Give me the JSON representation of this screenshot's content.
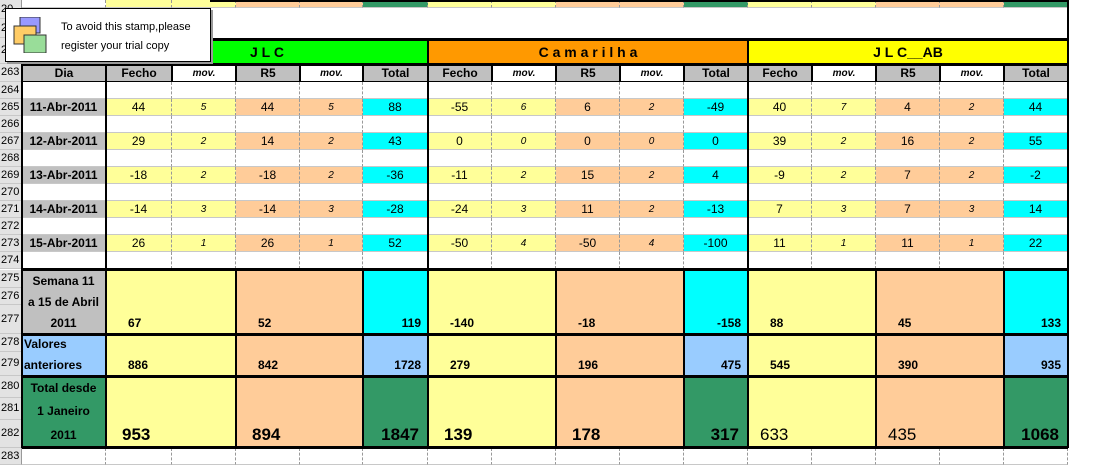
{
  "stamp": {
    "line1": "To avoid this stamp,please",
    "line2": "register your trial copy"
  },
  "row_numbers_top": [
    "20",
    "20",
    "20"
  ],
  "groups": [
    {
      "title": "J  L  C",
      "color": "#00ff00"
    },
    {
      "title": "C a m a r i l h a",
      "color": "#ff9900"
    },
    {
      "title": "J L C__AB",
      "color": "#ffff00"
    }
  ],
  "col_headers": [
    "Dia",
    "Fecho",
    "mov.",
    "R5",
    "mov.",
    "Total",
    "Fecho",
    "mov.",
    "R5",
    "mov.",
    "Total",
    "Fecho",
    "mov.",
    "R5",
    "mov.",
    "Total"
  ],
  "rows": [
    {
      "row": "263"
    },
    {
      "row": "264"
    },
    {
      "row": "265",
      "date": "11-Abr-2011",
      "v": [
        "44",
        "5",
        "44",
        "5",
        "88",
        "-55",
        "6",
        "6",
        "2",
        "-49",
        "40",
        "7",
        "4",
        "2",
        "44"
      ]
    },
    {
      "row": "266"
    },
    {
      "row": "267",
      "date": "12-Abr-2011",
      "v": [
        "29",
        "2",
        "14",
        "2",
        "43",
        "0",
        "0",
        "0",
        "0",
        "0",
        "39",
        "2",
        "16",
        "2",
        "55"
      ]
    },
    {
      "row": "268"
    },
    {
      "row": "269",
      "date": "13-Abr-2011",
      "v": [
        "-18",
        "2",
        "-18",
        "2",
        "-36",
        "-11",
        "2",
        "15",
        "2",
        "4",
        "-9",
        "2",
        "7",
        "2",
        "-2"
      ]
    },
    {
      "row": "270"
    },
    {
      "row": "271",
      "date": "14-Abr-2011",
      "v": [
        "-14",
        "3",
        "-14",
        "3",
        "-28",
        "-24",
        "3",
        "11",
        "2",
        "-13",
        "7",
        "3",
        "7",
        "3",
        "14"
      ]
    },
    {
      "row": "272"
    },
    {
      "row": "273",
      "date": "15-Abr-2011",
      "v": [
        "26",
        "1",
        "26",
        "1",
        "52",
        "-50",
        "4",
        "-50",
        "4",
        "-100",
        "11",
        "1",
        "11",
        "1",
        "22"
      ]
    },
    {
      "row": "274"
    }
  ],
  "summary_rows": [
    "275",
    "276",
    "277",
    "278",
    "279",
    "280",
    "281",
    "282",
    "283"
  ],
  "semana": {
    "label1": "Semana 11",
    "label2": "a 15 de Abril",
    "label3": "2011",
    "values": [
      "67",
      "52",
      "119",
      "-140",
      "-18",
      "-158",
      "88",
      "45",
      "133"
    ]
  },
  "anteriores": {
    "label1": "Valores",
    "label2": "anteriores",
    "values": [
      "886",
      "842",
      "1728",
      "279",
      "196",
      "475",
      "545",
      "390",
      "935"
    ]
  },
  "total": {
    "label1": "Total desde",
    "label2": "1 Janeiro",
    "label3": "2011",
    "values": [
      "953",
      "894",
      "1847",
      "139",
      "178",
      "317",
      "633",
      "435",
      "1068"
    ]
  }
}
